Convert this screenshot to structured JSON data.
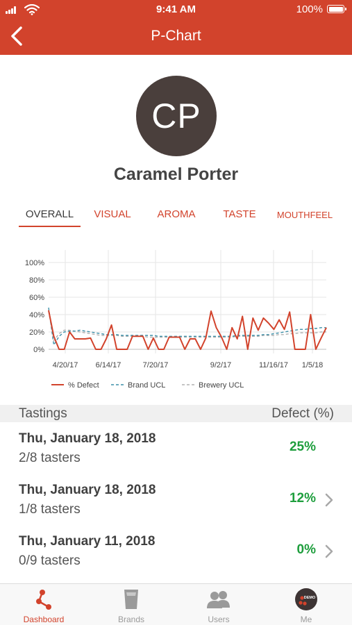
{
  "status": {
    "time": "9:41 AM",
    "battery": "100%"
  },
  "nav": {
    "title": "P-Chart",
    "back_icon": "chevron-left-icon"
  },
  "profile": {
    "initials": "CP",
    "name": "Caramel Porter",
    "avatar_color": "#4a3f3c"
  },
  "tabs": [
    {
      "label": "OVERALL",
      "active": true
    },
    {
      "label": "VISUAL",
      "active": false
    },
    {
      "label": "AROMA",
      "active": false
    },
    {
      "label": "TASTE",
      "active": false
    },
    {
      "label": "MOUTHFEEL",
      "active": false
    }
  ],
  "chart_data": {
    "type": "line",
    "title": "",
    "xlabel": "",
    "ylabel": "",
    "ylim": [
      0,
      100
    ],
    "y_ticks": [
      "100%",
      "80%",
      "60%",
      "40%",
      "20%",
      "0%"
    ],
    "x_ticks": [
      "4/20/17",
      "6/14/17",
      "7/20/17",
      "9/2/17",
      "11/16/17",
      "1/5/18"
    ],
    "grid": true,
    "legend_position": "bottom",
    "series": [
      {
        "name": "% Defect",
        "color": "#d2432c",
        "dash": "solid",
        "values": [
          45,
          15,
          0,
          0,
          20,
          12,
          12,
          12,
          13,
          0,
          0,
          12,
          28,
          0,
          0,
          0,
          15,
          15,
          15,
          0,
          13,
          0,
          0,
          14,
          14,
          14,
          0,
          12,
          12,
          0,
          13,
          44,
          25,
          14,
          0,
          25,
          12,
          38,
          0,
          36,
          22,
          36,
          30,
          23,
          34,
          23,
          43,
          0,
          0,
          0,
          40,
          0,
          13,
          25
        ]
      },
      {
        "name": "Brand UCL",
        "color": "#3c8fa8",
        "dash": "dashed",
        "values": [
          48,
          5,
          15,
          20,
          21,
          21,
          22,
          21,
          20,
          19,
          18,
          17,
          17,
          17,
          16,
          16,
          16,
          16,
          16,
          16,
          16,
          15,
          15,
          15,
          15,
          15,
          15,
          15,
          15,
          15,
          15,
          15,
          15,
          15,
          15,
          15,
          16,
          16,
          16,
          16,
          16,
          17,
          17,
          18,
          19,
          20,
          21,
          22,
          23,
          23,
          24,
          24,
          25,
          25
        ]
      },
      {
        "name": "Brewery UCL",
        "color": "#b0b0b0",
        "dash": "dashed",
        "values": [
          44,
          10,
          18,
          22,
          22,
          21,
          20,
          19,
          18,
          17,
          16,
          16,
          16,
          16,
          15,
          15,
          15,
          15,
          15,
          14,
          14,
          14,
          14,
          14,
          14,
          14,
          14,
          14,
          14,
          14,
          14,
          14,
          14,
          14,
          14,
          14,
          15,
          15,
          15,
          15,
          15,
          16,
          16,
          16,
          17,
          17,
          18,
          18,
          19,
          19,
          19,
          19,
          20,
          20
        ]
      }
    ]
  },
  "list": {
    "header_left": "Tastings",
    "header_right": "Defect (%)",
    "rows": [
      {
        "date": "Thu, January 18, 2018",
        "tasters": "2/8 tasters",
        "defect": "25%",
        "chevron": false
      },
      {
        "date": "Thu, January 18, 2018",
        "tasters": "1/8 tasters",
        "defect": "12%",
        "chevron": true
      },
      {
        "date": "Thu, January 11, 2018",
        "tasters": "0/9 tasters",
        "defect": "0%",
        "chevron": true
      }
    ]
  },
  "tab_bar": [
    {
      "label": "Dashboard",
      "icon": "dashboard-icon",
      "active": true
    },
    {
      "label": "Brands",
      "icon": "glass-icon",
      "active": false
    },
    {
      "label": "Users",
      "icon": "users-icon",
      "active": false
    },
    {
      "label": "Me",
      "icon": "demo-avatar-icon",
      "active": false,
      "badge": "DEMO"
    }
  ],
  "colors": {
    "accent": "#d2432c",
    "positive": "#1e9e3d"
  }
}
